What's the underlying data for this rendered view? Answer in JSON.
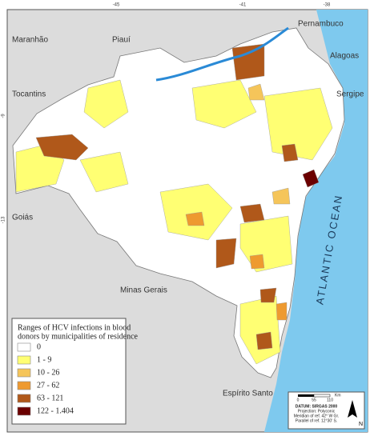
{
  "map": {
    "ticks_top": [
      "-45",
      "-41",
      "-38"
    ],
    "ticks_left": [
      "-9",
      "-13"
    ],
    "regions": [
      "Maranhão",
      "Piauí",
      "Pernambuco",
      "Alagoas",
      "Sergipe",
      "Tocantins",
      "Goiás",
      "Minas Gerais",
      "Espírito Santo"
    ],
    "ocean": "ATLANTIC OCEAN",
    "legend": {
      "title": [
        "Ranges of HCV infections in blood",
        "donors by municipalities of residence"
      ],
      "items": [
        {
          "label": "0",
          "color": "#ffffff"
        },
        {
          "label": "1 - 9",
          "color": "#ffff73"
        },
        {
          "label": "10 - 26",
          "color": "#f5c55a"
        },
        {
          "label": "27 - 62",
          "color": "#ee9a30"
        },
        {
          "label": "63 - 121",
          "color": "#b0581a"
        },
        {
          "label": "122 - 1.404",
          "color": "#6b0000"
        }
      ]
    },
    "scale": [
      "0",
      "55",
      "110",
      "Km"
    ],
    "datum": [
      "DATUM: SIRGAS 2000",
      "Projection: Polyconic",
      "Meridian of ref. 42° W Gr.",
      "Parallel of ref. 12°30' S."
    ],
    "north": "N"
  }
}
